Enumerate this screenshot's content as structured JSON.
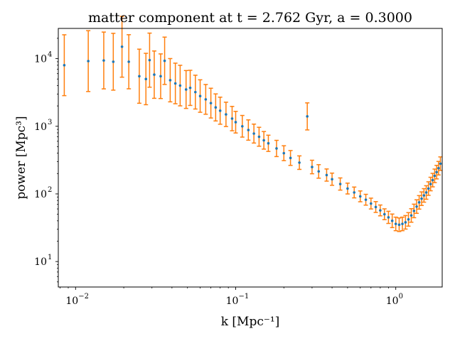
{
  "chart_data": {
    "type": "scatter",
    "title": "matter component at t = 2.762 Gyr, a = 0.3000",
    "xlabel": "k [Mpc⁻¹]",
    "ylabel": "power [Mpc³]",
    "xscale": "log",
    "yscale": "log",
    "xlim": [
      0.0078,
      1.95
    ],
    "ylim": [
      4.2,
      28000
    ],
    "grid": false,
    "x_ticks": [
      {
        "value": 0.01,
        "base": "10",
        "exp": "−2"
      },
      {
        "value": 0.1,
        "base": "10",
        "exp": "−1"
      },
      {
        "value": 1,
        "base": "10",
        "exp": "0"
      }
    ],
    "y_ticks": [
      {
        "value": 10,
        "base": "10",
        "exp": "1"
      },
      {
        "value": 100,
        "base": "10",
        "exp": "2"
      },
      {
        "value": 1000,
        "base": "10",
        "exp": "3"
      },
      {
        "value": 10000,
        "base": "10",
        "exp": "4"
      }
    ],
    "colors": {
      "points": "#1f77b4",
      "errorbars": "#ff7f0e"
    },
    "series": [
      {
        "x": [
          0.0085,
          0.012,
          0.015,
          0.0172,
          0.0195,
          0.0215,
          0.025,
          0.0275,
          0.029,
          0.031,
          0.034,
          0.036,
          0.039,
          0.042,
          0.045,
          0.049,
          0.052,
          0.056,
          0.06,
          0.065,
          0.07,
          0.075,
          0.08,
          0.087,
          0.095,
          0.1,
          0.11,
          0.12,
          0.13,
          0.14,
          0.15,
          0.16,
          0.18,
          0.2,
          0.22,
          0.25,
          0.28,
          0.3,
          0.33,
          0.37,
          0.4,
          0.45,
          0.5,
          0.55,
          0.6,
          0.65,
          0.7,
          0.75,
          0.8,
          0.85,
          0.9,
          0.95,
          1.0,
          1.05,
          1.1,
          1.15,
          1.2,
          1.25,
          1.3,
          1.35,
          1.4,
          1.45,
          1.5,
          1.55,
          1.6,
          1.65,
          1.7,
          1.75,
          1.8,
          1.85,
          1.9
        ],
        "y": [
          8000,
          9200,
          9400,
          9000,
          15000,
          9000,
          5500,
          5000,
          9500,
          5800,
          5500,
          9300,
          4800,
          4300,
          4000,
          3500,
          3700,
          3200,
          2800,
          2500,
          2200,
          1900,
          1700,
          1500,
          1300,
          1150,
          1000,
          880,
          780,
          700,
          620,
          560,
          470,
          400,
          340,
          290,
          1400,
          250,
          215,
          190,
          165,
          140,
          120,
          105,
          92,
          82,
          72,
          64,
          57,
          50,
          45,
          40,
          36,
          35,
          36,
          38,
          42,
          48,
          56,
          65,
          75,
          85,
          95,
          105,
          120,
          140,
          160,
          185,
          210,
          240,
          280
        ],
        "err": [
          0.45,
          0.45,
          0.42,
          0.42,
          0.45,
          0.4,
          0.4,
          0.38,
          0.4,
          0.35,
          0.33,
          0.35,
          0.32,
          0.3,
          0.3,
          0.28,
          0.26,
          0.25,
          0.24,
          0.22,
          0.22,
          0.2,
          0.2,
          0.18,
          0.18,
          0.16,
          0.16,
          0.15,
          0.14,
          0.14,
          0.13,
          0.12,
          0.12,
          0.11,
          0.11,
          0.1,
          0.2,
          0.1,
          0.1,
          0.09,
          0.09,
          0.09,
          0.08,
          0.08,
          0.08,
          0.08,
          0.08,
          0.08,
          0.08,
          0.08,
          0.09,
          0.1,
          0.1,
          0.1,
          0.1,
          0.1,
          0.1,
          0.1,
          0.1,
          0.1,
          0.1,
          0.1,
          0.1,
          0.1,
          0.1,
          0.1,
          0.1,
          0.1,
          0.1,
          0.1,
          0.1
        ]
      }
    ]
  }
}
